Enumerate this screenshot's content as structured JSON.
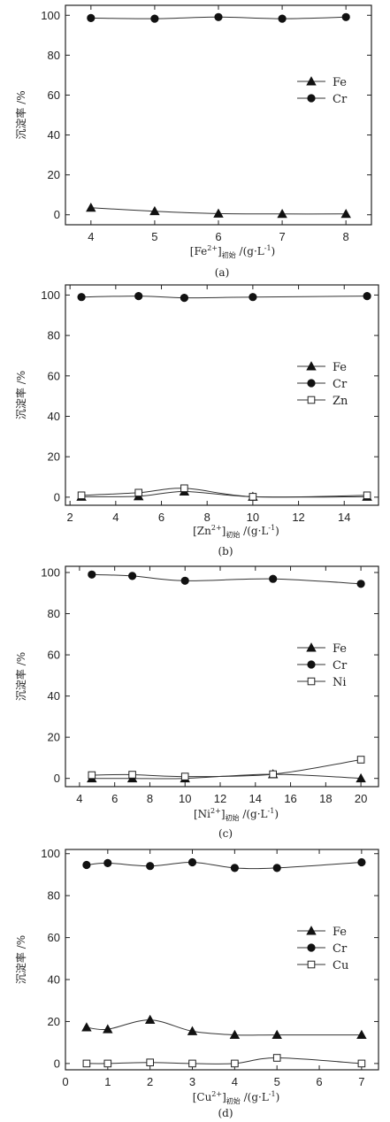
{
  "chart_data": [
    {
      "type": "line",
      "ylabel": "沉淀率 /%",
      "xlabel_parts": [
        "[Fe",
        "2+",
        "]",
        "初始",
        " /(g·L",
        "-1",
        ")"
      ],
      "caption": "(a)",
      "xlim": [
        3.6,
        8.4
      ],
      "ylim": [
        -5,
        105
      ],
      "xticks": [
        4,
        5,
        6,
        7,
        8
      ],
      "yticks": [
        0,
        20,
        40,
        60,
        80,
        100
      ],
      "legend_position": "center-right",
      "series": [
        {
          "name": "Fe",
          "marker": "triangle",
          "x": [
            4,
            5,
            6,
            7,
            8
          ],
          "y": [
            3.5,
            1.8,
            0.6,
            0.4,
            0.4
          ]
        },
        {
          "name": "Cr",
          "marker": "circle",
          "x": [
            4,
            5,
            6,
            7,
            8
          ],
          "y": [
            98.6,
            98.3,
            99.1,
            98.3,
            99.1
          ]
        }
      ]
    },
    {
      "type": "line",
      "ylabel": "沉淀率 /%",
      "xlabel_parts": [
        "[Zn",
        "2+",
        "]",
        "初始",
        " /(g·L",
        "-1",
        ")"
      ],
      "caption": "(b)",
      "xlim": [
        1.8,
        15.5
      ],
      "ylim": [
        -4,
        105
      ],
      "xticks": [
        2,
        4,
        6,
        8,
        10,
        12,
        14
      ],
      "yticks": [
        0,
        20,
        40,
        60,
        80,
        100
      ],
      "legend_position": "center-right",
      "series": [
        {
          "name": "Fe",
          "marker": "triangle",
          "x": [
            2.5,
            5,
            7,
            10,
            15
          ],
          "y": [
            0.2,
            0.4,
            2.8,
            0.2,
            0.2
          ]
        },
        {
          "name": "Cr",
          "marker": "circle",
          "x": [
            2.5,
            5,
            7,
            10,
            15
          ],
          "y": [
            99.0,
            99.5,
            98.6,
            99.0,
            99.5
          ]
        },
        {
          "name": "Zn",
          "marker": "square",
          "x": [
            2.5,
            5,
            7,
            10,
            15
          ],
          "y": [
            0.9,
            2.2,
            4.4,
            0.2,
            0.9
          ]
        }
      ]
    },
    {
      "type": "line",
      "ylabel": "沉淀率 /%",
      "xlabel_parts": [
        "[Ni",
        "2+",
        "]",
        "初始",
        " /(g·L",
        "-1",
        ")"
      ],
      "caption": "(c)",
      "xlim": [
        3.2,
        21.0
      ],
      "ylim": [
        -4,
        103
      ],
      "xticks": [
        4,
        6,
        8,
        10,
        12,
        14,
        16,
        18,
        20
      ],
      "yticks": [
        0,
        20,
        40,
        60,
        80,
        100
      ],
      "legend_position": "center-right",
      "series": [
        {
          "name": "Fe",
          "marker": "triangle",
          "x": [
            4.7,
            7,
            10,
            15,
            20
          ],
          "y": [
            0.0,
            0.0,
            0.0,
            2.0,
            0.0
          ]
        },
        {
          "name": "Cr",
          "marker": "circle",
          "x": [
            4.7,
            7,
            10,
            15,
            20
          ],
          "y": [
            99.0,
            98.3,
            96.0,
            96.9,
            94.5
          ]
        },
        {
          "name": "Ni",
          "marker": "square",
          "x": [
            4.7,
            7,
            10,
            15,
            20
          ],
          "y": [
            1.6,
            1.8,
            0.9,
            2.0,
            9.1
          ]
        }
      ]
    },
    {
      "type": "line",
      "ylabel": "沉淀率 /%",
      "xlabel_parts": [
        "[Cu",
        "2+",
        "]",
        "初始",
        " /(g·L",
        "-1",
        ")"
      ],
      "caption": "(d)",
      "xlim": [
        0,
        7.4
      ],
      "ylim": [
        -3,
        102
      ],
      "xticks": [
        0,
        1,
        2,
        3,
        4,
        5,
        6,
        7
      ],
      "yticks": [
        0,
        20,
        40,
        60,
        80,
        100
      ],
      "legend_position": "center-right",
      "series": [
        {
          "name": "Fe",
          "marker": "triangle",
          "x": [
            0.5,
            1,
            2,
            3,
            4,
            5,
            7
          ],
          "y": [
            17.2,
            16.3,
            20.8,
            15.4,
            13.6,
            13.6,
            13.6
          ]
        },
        {
          "name": "Cr",
          "marker": "circle",
          "x": [
            0.5,
            1,
            2,
            3,
            4,
            5,
            7
          ],
          "y": [
            94.6,
            95.5,
            94.1,
            95.9,
            93.2,
            93.2,
            95.9
          ]
        },
        {
          "name": "Cu",
          "marker": "square",
          "x": [
            0.5,
            1,
            2,
            3,
            4,
            5,
            7
          ],
          "y": [
            0.0,
            0.0,
            0.5,
            0.0,
            0.0,
            2.7,
            0.0
          ]
        }
      ]
    }
  ]
}
